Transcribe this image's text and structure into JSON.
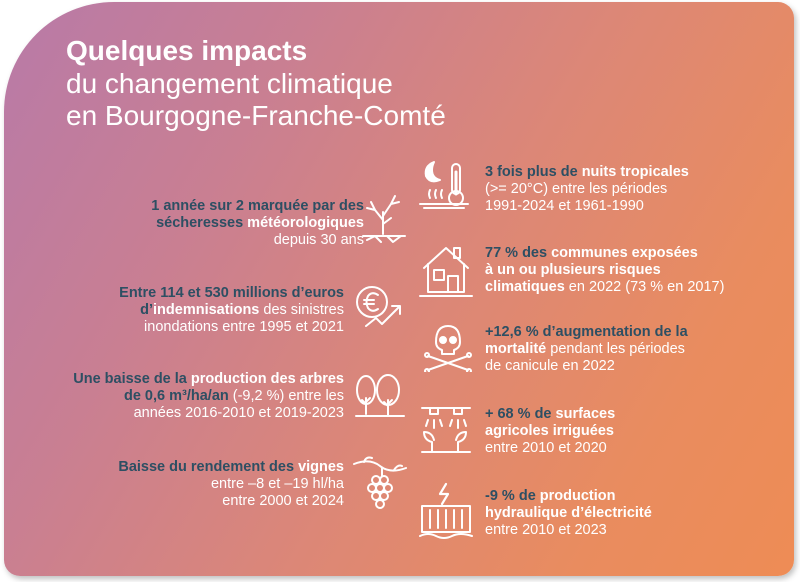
{
  "title": {
    "line1": "Quelques impacts",
    "line2": "du changement climatique",
    "line3": "en Bourgogne-Franche-Comté"
  },
  "left_items": [
    {
      "p1": "1 année sur 2 marquée par des",
      "p2a": "sécheresses ",
      "p2b": "météorologiques",
      "p3": "depuis 30 ans",
      "icon": "drought-tree-icon"
    },
    {
      "p1": "Entre 114 et 530 millions d’euros",
      "p2a": "d’",
      "p2b": "indemnisations",
      "p2c": " des sinistres",
      "p3": "inondations entre 1995 et 2021",
      "icon": "euro-growth-icon"
    },
    {
      "p1a": "Une baisse de la ",
      "p1b": "production des arbres",
      "p2a": "de 0,6 m³/ha/an",
      "p2b": " (-9,2 %) entre les",
      "p3": "années 2016-2010 et 2019-2023",
      "icon": "forest-trees-icon"
    },
    {
      "p1a": "Baisse du rendement des ",
      "p1b": "vignes",
      "p2": "entre –8 et –19 hl/ha",
      "p3": "entre 2000 et 2024",
      "icon": "grape-vine-icon"
    }
  ],
  "right_items": [
    {
      "p1a": "3 fois plus de ",
      "p1b": "nuits tropicales",
      "p2": "(>= 20°C) entre les périodes",
      "p3": "1991-2024 et 1961-1990",
      "icon": "hot-night-thermometer-icon"
    },
    {
      "p1a": "77 % des ",
      "p1b": "communes exposées",
      "p2": "à un ou plusieurs risques",
      "p3a": "climatiques",
      "p3b": " en 2022 (73 % en 2017)",
      "icon": "house-risk-icon"
    },
    {
      "p1": "+12,6 % d’augmentation de la",
      "p2a": "mortalité",
      "p2b": " pendant les périodes",
      "p3": "de canicule en 2022",
      "icon": "skull-crossbones-icon"
    },
    {
      "p1a": "+ 68 % de ",
      "p1b": "surfaces",
      "p2": "agricoles irriguées",
      "p3": "entre 2010 et 2020",
      "icon": "irrigation-sprinkler-icon"
    },
    {
      "p1a": "-9 % de ",
      "p1b": "production",
      "p2": "hydraulique d’électricité",
      "p3": "entre 2010 et 2023",
      "icon": "hydro-dam-icon"
    }
  ],
  "colors": {
    "dark_text": "#2d4f63",
    "light_text": "#ffffff",
    "gradient_start": "#b87aa8",
    "gradient_end": "#ee8c55"
  }
}
